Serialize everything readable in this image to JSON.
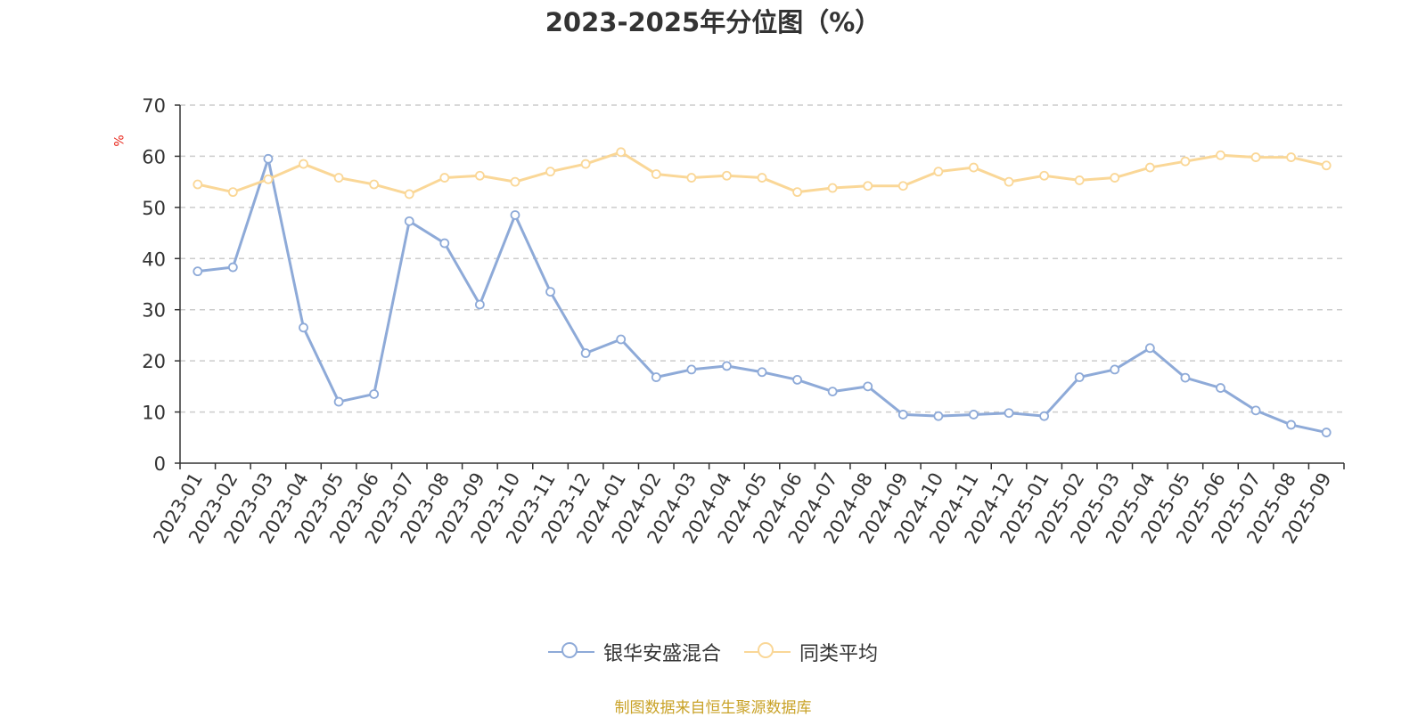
{
  "title": "2023-2025年分位图（%）",
  "unit_label": "%",
  "source": "制图数据来自恒生聚源数据库",
  "chart_data": {
    "type": "line",
    "title": "2023-2025年分位图（%）",
    "ylabel": "%",
    "ylim": [
      0,
      70
    ],
    "yticks": [
      0,
      10,
      20,
      30,
      40,
      50,
      60,
      70
    ],
    "grid": true,
    "legend_position": "bottom",
    "categories": [
      "2023-01",
      "2023-02",
      "2023-03",
      "2023-04",
      "2023-05",
      "2023-06",
      "2023-07",
      "2023-08",
      "2023-09",
      "2023-10",
      "2023-11",
      "2023-12",
      "2024-01",
      "2024-02",
      "2024-03",
      "2024-04",
      "2024-05",
      "2024-06",
      "2024-07",
      "2024-08",
      "2024-09",
      "2024-10",
      "2024-11",
      "2024-12",
      "2025-01",
      "2025-02",
      "2025-03",
      "2025-04",
      "2025-05",
      "2025-06",
      "2025-07",
      "2025-08",
      "2025-09"
    ],
    "series": [
      {
        "name": "银华安盛混合",
        "color": "#8eaad8",
        "values": [
          37.5,
          38.3,
          59.5,
          26.5,
          12.0,
          13.5,
          47.3,
          43.0,
          31.0,
          48.5,
          33.5,
          21.5,
          24.2,
          16.8,
          18.3,
          19.0,
          17.8,
          16.3,
          14.0,
          15.0,
          9.5,
          9.2,
          9.5,
          9.8,
          9.2,
          16.8,
          18.3,
          22.5,
          16.7,
          14.7,
          10.3,
          7.5,
          6.0
        ]
      },
      {
        "name": "同类平均",
        "color": "#fad797",
        "values": [
          54.5,
          53.0,
          55.5,
          58.5,
          55.8,
          54.5,
          52.6,
          55.8,
          56.2,
          55.0,
          57.0,
          58.5,
          60.8,
          56.5,
          55.8,
          56.2,
          55.8,
          53.0,
          53.8,
          54.2,
          54.2,
          57.0,
          57.8,
          55.0,
          56.2,
          55.3,
          55.8,
          57.8,
          59.0,
          60.2,
          59.8,
          59.8,
          58.2
        ]
      }
    ]
  }
}
